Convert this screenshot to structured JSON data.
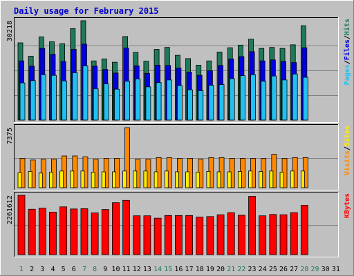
{
  "chart_data": {
    "type": "bar",
    "title": "Daily usage for February 2015",
    "x": [
      "1",
      "2",
      "3",
      "4",
      "5",
      "6",
      "7",
      "8",
      "9",
      "10",
      "11",
      "12",
      "13",
      "14",
      "15",
      "16",
      "17",
      "18",
      "19",
      "20",
      "21",
      "22",
      "23",
      "24",
      "25",
      "26",
      "27",
      "28",
      "29",
      "30",
      "31"
    ],
    "weekend_days": [
      "1",
      "7",
      "8",
      "14",
      "15",
      "21",
      "22",
      "28",
      "29"
    ],
    "colors": {
      "background": "#c0c0c0",
      "title": "#0000cc",
      "hits": "#1f7a5a",
      "files": "#0000e0",
      "pages": "#22c0f0",
      "visits": "#ff8800",
      "sites": "#ffee00",
      "kbytes": "#ff0000",
      "weekday_label": "#000000",
      "weekend_label": "#1f7a5a"
    },
    "panels": [
      {
        "id": "hits-files-pages",
        "max_label": "30218",
        "ylim": [
          0,
          30218
        ],
        "legend": [
          "Hits",
          "/",
          "Files",
          "/",
          "Pages"
        ],
        "series": [
          {
            "name": "Hits",
            "values": [
              23500,
              19400,
              25300,
              23800,
              23200,
              27800,
              30218,
              18000,
              18600,
              17600,
              25400,
              20600,
              17900,
              21500,
              22100,
              19700,
              18700,
              16700,
              18000,
              20700,
              22000,
              22800,
              24600,
              21800,
              22100,
              21800,
              22900,
              28700,
              0,
              0,
              0
            ]
          },
          {
            "name": "Files",
            "values": [
              18000,
              16400,
              21800,
              20000,
              17800,
              21500,
              23100,
              16400,
              15400,
              14300,
              21900,
              16500,
              14200,
              16700,
              16600,
              15800,
              14600,
              13600,
              15000,
              16600,
              18600,
              19300,
              20800,
              18000,
              18300,
              17800,
              17500,
              22000,
              0,
              0,
              0
            ]
          },
          {
            "name": "Pages",
            "values": [
              11300,
              12000,
              13800,
              13600,
              11900,
              14400,
              16500,
              9500,
              11000,
              9400,
              11800,
              12500,
              10100,
              11400,
              12200,
              10500,
              9200,
              8900,
              10600,
              10800,
              12600,
              13500,
              13800,
              11800,
              13400,
              12200,
              14000,
              13000,
              0,
              0,
              0
            ]
          }
        ]
      },
      {
        "id": "visits-sites",
        "max_label": "7375",
        "ylim": [
          0,
          7375
        ],
        "legend": [
          "Sites",
          "/",
          "Visits"
        ],
        "series": [
          {
            "name": "Visits",
            "values": [
              3600,
              3400,
              3500,
              3500,
              3900,
              3900,
              3800,
              3500,
              3600,
              3600,
              7375,
              3500,
              3500,
              3700,
              3700,
              3600,
              3600,
              3500,
              3700,
              3700,
              3600,
              3600,
              3600,
              3600,
              4100,
              3600,
              3700,
              3700,
              0,
              0,
              0
            ]
          },
          {
            "name": "Sites",
            "values": [
              1850,
              2000,
              1800,
              1900,
              2050,
              2050,
              2050,
              1900,
              1950,
              1950,
              2050,
              2050,
              2050,
              1950,
              2050,
              1950,
              1950,
              1900,
              2000,
              1950,
              1950,
              2000,
              2050,
              2000,
              2050,
              1900,
              2050,
              2050,
              0,
              0,
              0
            ]
          }
        ]
      },
      {
        "id": "kbytes",
        "max_label": "2261612",
        "ylim": [
          0,
          2261612
        ],
        "legend": [
          "KBytes"
        ],
        "series": [
          {
            "name": "KBytes",
            "values": [
              2261612,
              1730000,
              1770000,
              1620000,
              1820000,
              1740000,
              1750000,
              1590000,
              1720000,
              1980000,
              2070000,
              1480000,
              1480000,
              1390000,
              1490000,
              1490000,
              1490000,
              1430000,
              1450000,
              1520000,
              1600000,
              1500000,
              2220000,
              1480000,
              1530000,
              1520000,
              1600000,
              1880000,
              0,
              0,
              0
            ]
          }
        ]
      }
    ]
  }
}
